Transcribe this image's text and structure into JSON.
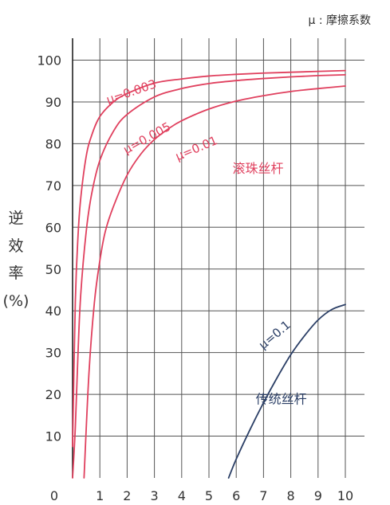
{
  "chart_data": {
    "type": "line",
    "title": "",
    "legend_note": "μ : 摩擦系数",
    "ylabel": [
      "逆",
      "效",
      "率",
      "(%)"
    ],
    "xlabel": "",
    "xlim": [
      0,
      10
    ],
    "ylim": [
      0,
      100
    ],
    "x_ticks": [
      "0",
      "1",
      "2",
      "3",
      "4",
      "5",
      "6",
      "7",
      "8",
      "9",
      "10"
    ],
    "y_ticks": [
      "10",
      "20",
      "30",
      "40",
      "50",
      "60",
      "70",
      "80",
      "90",
      "100"
    ],
    "grid": true,
    "colors": {
      "red": "#e0405e",
      "navy": "#2b3f66",
      "grid": "#555555",
      "text": "#333333"
    },
    "group_labels": [
      {
        "text": "滚珠丝杆",
        "color": "red",
        "x": 6.8,
        "y": 73
      },
      {
        "text": "传统丝杆",
        "color": "navy",
        "x": 7.65,
        "y": 17.8
      }
    ],
    "series": [
      {
        "name": "μ=0.003",
        "color": "red",
        "label_at": [
          2.2,
          91.5
        ],
        "label_angle": -19,
        "x": [
          0,
          0.1,
          0.2,
          0.3,
          0.5,
          0.7,
          1.0,
          1.5,
          2.0,
          3.0,
          4.0,
          5.0,
          6.0,
          7.0,
          8.0,
          9.0,
          10.0
        ],
        "y": [
          7.5,
          42,
          58,
          67,
          77,
          82,
          86.5,
          90,
          92,
          94.5,
          95.5,
          96.2,
          96.6,
          96.9,
          97.1,
          97.3,
          97.5
        ]
      },
      {
        "name": "μ=0.005",
        "color": "red",
        "label_at": [
          2.8,
          80.5
        ],
        "label_angle": -29,
        "x": [
          0,
          0.1,
          0.2,
          0.3,
          0.5,
          0.7,
          1.0,
          1.5,
          2.0,
          3.0,
          4.0,
          5.0,
          6.0,
          7.0,
          8.0,
          9.0,
          10.0
        ],
        "y": [
          0,
          12,
          30,
          44,
          59,
          68,
          76,
          83,
          87,
          91.2,
          93.2,
          94.4,
          95.1,
          95.6,
          96,
          96.3,
          96.5
        ]
      },
      {
        "name": "μ=0.01",
        "color": "red",
        "label_at": [
          4.6,
          78
        ],
        "label_angle": -23,
        "x": [
          0.42,
          0.6,
          0.8,
          1.0,
          1.2,
          1.5,
          2.0,
          2.5,
          3.0,
          3.5,
          4.0,
          5.0,
          6.0,
          7.0,
          8.0,
          9.0,
          10.0
        ],
        "y": [
          0,
          25,
          42,
          52,
          59,
          65,
          72.5,
          77.5,
          81,
          83.5,
          85.5,
          88.3,
          90.2,
          91.5,
          92.5,
          93.2,
          93.8
        ]
      },
      {
        "name": "μ=0.1",
        "color": "navy",
        "label_at": [
          7.5,
          33.5
        ],
        "label_angle": -40,
        "x": [
          5.72,
          6.0,
          6.5,
          7.0,
          7.5,
          8.0,
          8.5,
          9.0,
          9.5,
          10.0
        ],
        "y": [
          0,
          4.5,
          11.5,
          18,
          24,
          29.5,
          34,
          37.8,
          40.3,
          41.5
        ]
      }
    ]
  }
}
